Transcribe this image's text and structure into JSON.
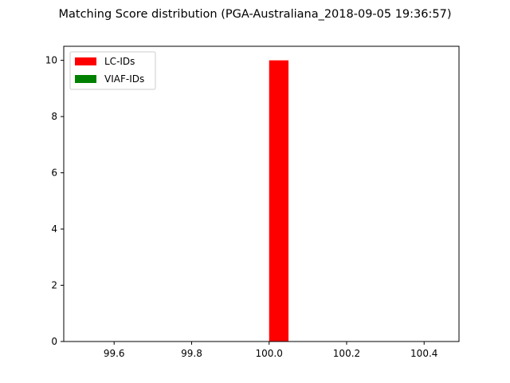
{
  "chart_data": {
    "type": "bar",
    "title": "Matching Score distribution (PGA-Australiana_2018-09-05 19:36:57)",
    "xlabel": "",
    "ylabel": "",
    "xlim": [
      99.47,
      100.49
    ],
    "ylim": [
      0,
      10.5
    ],
    "x_ticks": [
      99.6,
      99.8,
      100.0,
      100.2,
      100.4
    ],
    "x_tick_labels": [
      "99.6",
      "99.8",
      "100.0",
      "100.2",
      "100.4"
    ],
    "y_ticks": [
      0,
      2,
      4,
      6,
      8,
      10
    ],
    "y_tick_labels": [
      "0",
      "2",
      "4",
      "6",
      "8",
      "10"
    ],
    "grid": false,
    "legend_position": "top-left",
    "series": [
      {
        "name": "LC-IDs",
        "color": "#ff0000",
        "bars": [
          {
            "x_start": 100.0,
            "x_end": 100.05,
            "value": 10
          }
        ]
      },
      {
        "name": "VIAF-IDs",
        "color": "#008000",
        "bars": []
      }
    ]
  }
}
